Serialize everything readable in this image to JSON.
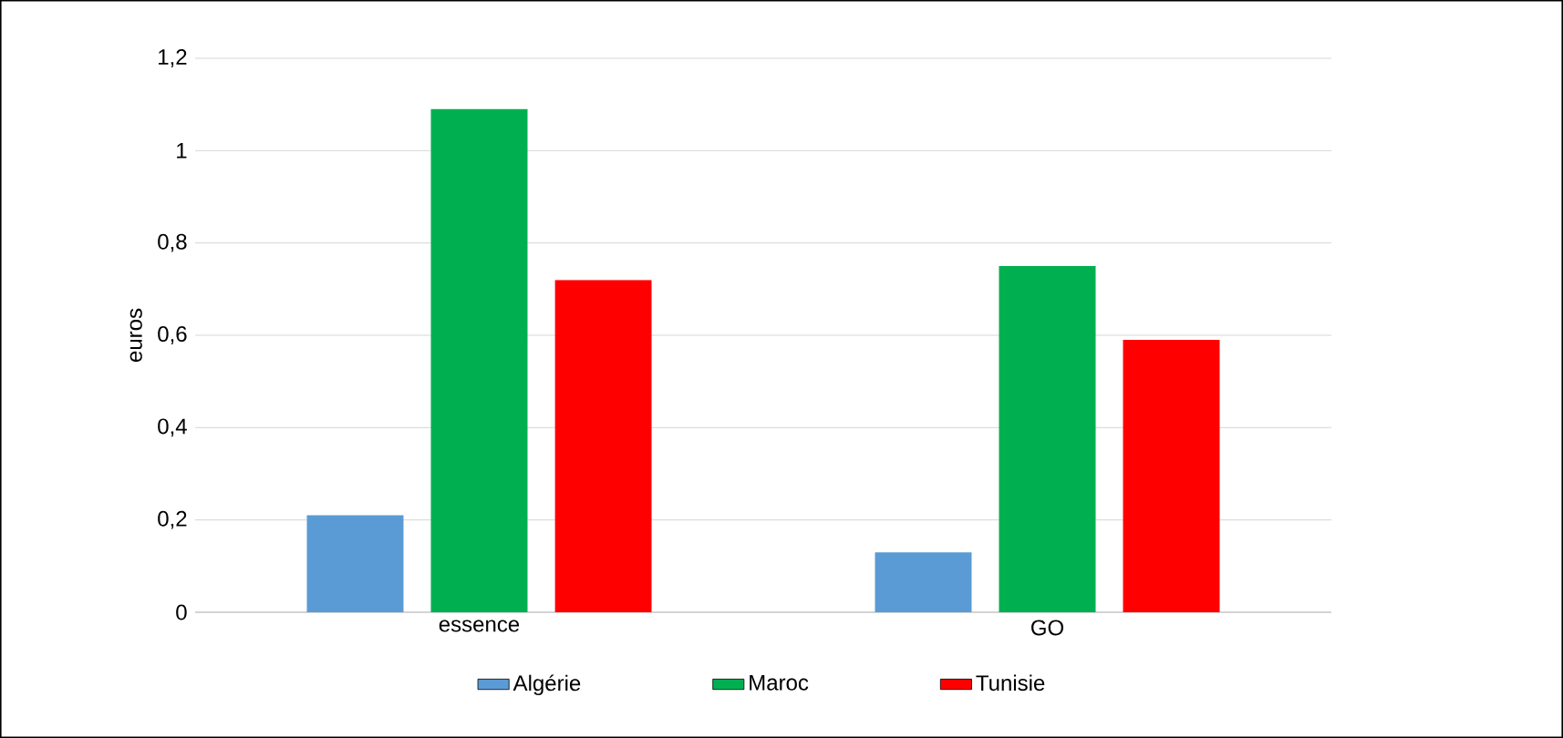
{
  "chart_data": {
    "type": "bar",
    "ylabel": "euros",
    "categories": [
      "essence",
      "GO"
    ],
    "series": [
      {
        "name": "Algérie",
        "color": "#5b9bd5",
        "values": [
          0.21,
          0.13
        ]
      },
      {
        "name": "Maroc",
        "color": "#00b050",
        "values": [
          1.09,
          0.75
        ]
      },
      {
        "name": "Tunisie",
        "color": "#ff0000",
        "values": [
          0.72,
          0.59
        ]
      }
    ],
    "ylim": [
      0,
      1.2
    ],
    "yticks": [
      0,
      {
        "value": 0.2,
        "label": "0,2"
      },
      {
        "value": 0.4,
        "label": "0,4"
      },
      {
        "value": 0.6,
        "label": "0,6"
      },
      {
        "value": 0.8,
        "label": "0,8"
      },
      1,
      {
        "value": 1.2,
        "label": "1,2"
      }
    ],
    "grid": "y",
    "legend": "bottom"
  }
}
